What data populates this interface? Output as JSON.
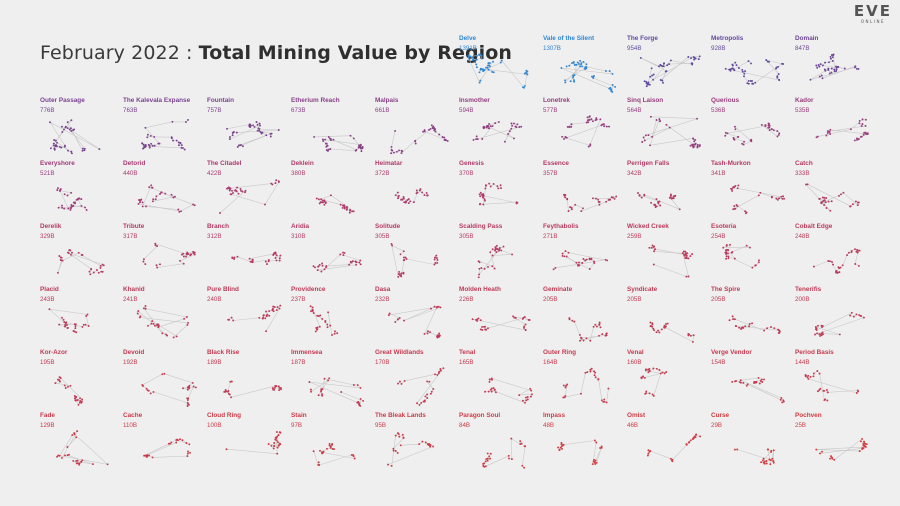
{
  "title": {
    "prefix": "February 2022 : ",
    "main": "Total Mining Value by Region"
  },
  "logo": {
    "mark": "EVE",
    "sub": "ONLINE"
  },
  "colors": {
    "top": "#2f86d4",
    "high": "#5f4a9e",
    "mid": "#a33a78",
    "low": "#d43a3e"
  },
  "chart_data": {
    "type": "small-multiples",
    "title": "February 2022 : Total Mining Value by Region",
    "unit": "B",
    "regions": [
      {
        "name": "Delve",
        "value": 1391
      },
      {
        "name": "Vale of the Silent",
        "value": 1307
      },
      {
        "name": "The Forge",
        "value": 954
      },
      {
        "name": "Metropolis",
        "value": 928
      },
      {
        "name": "Domain",
        "value": 847
      },
      {
        "name": "Outer Passage",
        "value": 776
      },
      {
        "name": "The Kalevala Expanse",
        "value": 763
      },
      {
        "name": "Fountain",
        "value": 757
      },
      {
        "name": "Etherium Reach",
        "value": 673
      },
      {
        "name": "Malpais",
        "value": 661
      },
      {
        "name": "Insmother",
        "value": 594
      },
      {
        "name": "Lonetrek",
        "value": 577
      },
      {
        "name": "Sinq Laison",
        "value": 564
      },
      {
        "name": "Querious",
        "value": 536
      },
      {
        "name": "Kador",
        "value": 535
      },
      {
        "name": "Everyshore",
        "value": 521
      },
      {
        "name": "Detorid",
        "value": 440
      },
      {
        "name": "The Citadel",
        "value": 422
      },
      {
        "name": "Deklein",
        "value": 380
      },
      {
        "name": "Heimatar",
        "value": 372
      },
      {
        "name": "Genesis",
        "value": 370
      },
      {
        "name": "Essence",
        "value": 357
      },
      {
        "name": "Perrigen Falls",
        "value": 342
      },
      {
        "name": "Tash-Murkon",
        "value": 341
      },
      {
        "name": "Catch",
        "value": 333
      },
      {
        "name": "Derelik",
        "value": 329
      },
      {
        "name": "Tribute",
        "value": 317
      },
      {
        "name": "Branch",
        "value": 312
      },
      {
        "name": "Aridia",
        "value": 310
      },
      {
        "name": "Solitude",
        "value": 305
      },
      {
        "name": "Scalding Pass",
        "value": 305
      },
      {
        "name": "Feythabolis",
        "value": 271
      },
      {
        "name": "Wicked Creek",
        "value": 259
      },
      {
        "name": "Esoteria",
        "value": 254
      },
      {
        "name": "Cobalt Edge",
        "value": 248
      },
      {
        "name": "Placid",
        "value": 243
      },
      {
        "name": "Khanid",
        "value": 241
      },
      {
        "name": "Pure Blind",
        "value": 240
      },
      {
        "name": "Providence",
        "value": 237
      },
      {
        "name": "Dasa",
        "value": 232
      },
      {
        "name": "Molden Heath",
        "value": 226
      },
      {
        "name": "Geminate",
        "value": 205
      },
      {
        "name": "Syndicate",
        "value": 205
      },
      {
        "name": "The Spire",
        "value": 205
      },
      {
        "name": "Tenerifis",
        "value": 200
      },
      {
        "name": "Kor-Azor",
        "value": 195
      },
      {
        "name": "Devoid",
        "value": 192
      },
      {
        "name": "Black Rise",
        "value": 189
      },
      {
        "name": "Immensea",
        "value": 187
      },
      {
        "name": "Great Wildlands",
        "value": 170
      },
      {
        "name": "Tenal",
        "value": 165
      },
      {
        "name": "Outer Ring",
        "value": 164
      },
      {
        "name": "Venal",
        "value": 160
      },
      {
        "name": "Verge Vendor",
        "value": 154
      },
      {
        "name": "Period Basis",
        "value": 144
      },
      {
        "name": "Fade",
        "value": 129
      },
      {
        "name": "Cache",
        "value": 110
      },
      {
        "name": "Cloud Ring",
        "value": 100
      },
      {
        "name": "Stain",
        "value": 97
      },
      {
        "name": "The Bleak Lands",
        "value": 95
      },
      {
        "name": "Paragon Soul",
        "value": 84
      },
      {
        "name": "Impass",
        "value": 48
      },
      {
        "name": "Omist",
        "value": 46
      },
      {
        "name": "Curse",
        "value": 29
      },
      {
        "name": "Pochven",
        "value": 25
      }
    ]
  }
}
